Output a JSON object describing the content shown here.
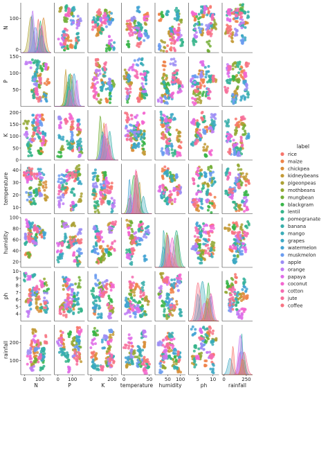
{
  "chart_data": {
    "type": "scatter",
    "kind": "pairplot",
    "variables": [
      "N",
      "P",
      "K",
      "temperature",
      "humidity",
      "ph",
      "rainfall"
    ],
    "legend": {
      "title": "label",
      "placement": "right",
      "entries": [
        {
          "name": "rice",
          "color": "#f7766d"
        },
        {
          "name": "maize",
          "color": "#ee8349"
        },
        {
          "name": "chickpea",
          "color": "#d98e3a"
        },
        {
          "name": "kidneybeans",
          "color": "#c39a36"
        },
        {
          "name": "pigeonpeas",
          "color": "#aca135"
        },
        {
          "name": "mothbeans",
          "color": "#93a834"
        },
        {
          "name": "mungbean",
          "color": "#73ae36"
        },
        {
          "name": "blackgram",
          "color": "#39b54a"
        },
        {
          "name": "lentil",
          "color": "#35b48a"
        },
        {
          "name": "pomegranate",
          "color": "#36b19c"
        },
        {
          "name": "banana",
          "color": "#38aeaa"
        },
        {
          "name": "mango",
          "color": "#3aacb7"
        },
        {
          "name": "grapes",
          "color": "#3ca8c4"
        },
        {
          "name": "watermelon",
          "color": "#43a3d3"
        },
        {
          "name": "muskmelon",
          "color": "#6b9cf0"
        },
        {
          "name": "apple",
          "color": "#9c8df5"
        },
        {
          "name": "orange",
          "color": "#c17cf4"
        },
        {
          "name": "papaya",
          "color": "#df6ce8"
        },
        {
          "name": "coconut",
          "color": "#f366d0"
        },
        {
          "name": "cotton",
          "color": "#f56cb1"
        },
        {
          "name": "jute",
          "color": "#f7709a"
        },
        {
          "name": "coffee",
          "color": "#f77483"
        }
      ]
    },
    "axes": {
      "N": {
        "range": [
          -10,
          150
        ],
        "ticks": [
          0,
          100
        ]
      },
      "P": {
        "range": [
          0,
          150
        ],
        "ticks": [
          50,
          100,
          150
        ]
      },
      "K": {
        "range": [
          0,
          210
        ],
        "ticks": [
          0,
          50,
          100,
          150,
          200
        ]
      },
      "temperature": {
        "range": [
          5,
          45
        ],
        "ticks": [
          10,
          20,
          30,
          40
        ]
      },
      "humidity": {
        "range": [
          10,
          100
        ],
        "ticks": [
          20,
          40,
          60,
          80,
          100
        ]
      },
      "ph": {
        "range": [
          3,
          10
        ],
        "ticks": [
          4,
          5,
          6,
          7,
          8,
          9,
          10
        ]
      },
      "rainfall": {
        "range": [
          20,
          300
        ],
        "ticks": [
          100,
          200
        ]
      }
    },
    "x_ticks": {
      "N": [
        0,
        100
      ],
      "P": [
        0,
        100
      ],
      "K": [
        0,
        200
      ],
      "temperature": [
        0,
        50
      ],
      "humidity": [
        50,
        100
      ],
      "ph": [
        5,
        10
      ],
      "rainfall": [
        0,
        250
      ]
    },
    "x_ranges": {
      "N": [
        -25,
        175
      ],
      "P": [
        -25,
        185
      ],
      "K": [
        -30,
        260
      ],
      "temperature": [
        -5,
        55
      ],
      "humidity": [
        0,
        120
      ],
      "ph": [
        2,
        12
      ],
      "rainfall": [
        -20,
        320
      ]
    },
    "diagonal": "kde",
    "grid": false
  }
}
